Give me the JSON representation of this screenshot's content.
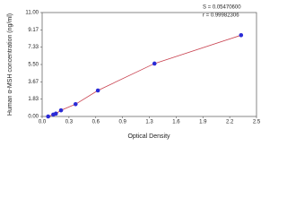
{
  "chart_data": {
    "type": "scatter",
    "xlabel": "Optical Density",
    "ylabel": "Human α-MSH concentration (ng/ml)",
    "annotations": [
      "S = 0.05470600",
      "r = 0.99982306"
    ],
    "x": [
      0.07,
      0.13,
      0.16,
      0.22,
      0.39,
      0.65,
      1.31,
      2.32
    ],
    "series": [
      {
        "color": "#2b2bd6",
        "line_color": "#c8404e",
        "values": [
          0,
          0.2,
          0.3,
          0.65,
          1.3,
          2.75,
          5.6,
          8.6
        ]
      }
    ],
    "xlim": [
      0,
      2.5
    ],
    "xticks": [
      {
        "value": 0,
        "label": "0.0"
      },
      {
        "value": 0.3125,
        "label": "0.3"
      },
      {
        "value": 0.625,
        "label": "0.6"
      },
      {
        "value": 0.9375,
        "label": "0.9"
      },
      {
        "value": 1.25,
        "label": "1.3"
      },
      {
        "value": 1.5625,
        "label": "1.6"
      },
      {
        "value": 1.875,
        "label": "1.9"
      },
      {
        "value": 2.1875,
        "label": "2.2"
      },
      {
        "value": 2.5,
        "label": "2.5"
      }
    ],
    "ylim": [
      0,
      11
    ],
    "yticks": [
      {
        "value": 0,
        "label": "0.00"
      },
      {
        "value": 1.8333,
        "label": "1.83"
      },
      {
        "value": 3.6667,
        "label": "3.67"
      },
      {
        "value": 5.5,
        "label": "5.50"
      },
      {
        "value": 7.3333,
        "label": "7.33"
      },
      {
        "value": 9.1667,
        "label": "9.17"
      },
      {
        "value": 11,
        "label": "11.00"
      }
    ]
  }
}
